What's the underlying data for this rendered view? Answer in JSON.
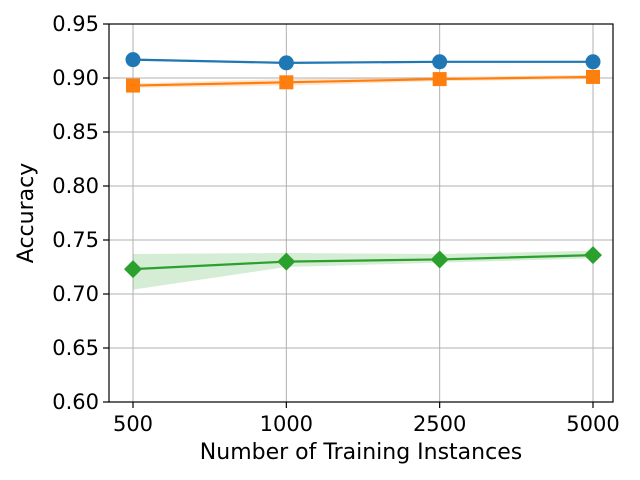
{
  "chart_data": {
    "type": "line",
    "categories": [
      "500",
      "1000",
      "2500",
      "5000"
    ],
    "xlabel": "Number of Training Instances",
    "ylabel": "Accuracy",
    "ylim": [
      0.6,
      0.95
    ],
    "yticks": [
      0.6,
      0.65,
      0.7,
      0.75,
      0.8,
      0.85,
      0.9,
      0.95
    ],
    "ytick_labels": [
      "0.60",
      "0.65",
      "0.70",
      "0.75",
      "0.80",
      "0.85",
      "0.90",
      "0.95"
    ],
    "grid": true,
    "series": [
      {
        "color": "#1f77b4",
        "marker": "circle",
        "values": [
          0.917,
          0.914,
          0.915,
          0.915
        ],
        "lower": [
          0.916,
          0.913,
          0.914,
          0.914
        ],
        "upper": [
          0.918,
          0.915,
          0.916,
          0.916
        ]
      },
      {
        "color": "#ff7f0e",
        "marker": "square",
        "values": [
          0.893,
          0.896,
          0.899,
          0.901
        ],
        "lower": [
          0.891,
          0.893,
          0.897,
          0.899
        ],
        "upper": [
          0.895,
          0.899,
          0.901,
          0.903
        ]
      },
      {
        "color": "#2ca02c",
        "marker": "diamond",
        "values": [
          0.723,
          0.73,
          0.732,
          0.736
        ],
        "lower": [
          0.704,
          0.725,
          0.729,
          0.733
        ],
        "upper": [
          0.737,
          0.738,
          0.737,
          0.74
        ]
      }
    ]
  }
}
